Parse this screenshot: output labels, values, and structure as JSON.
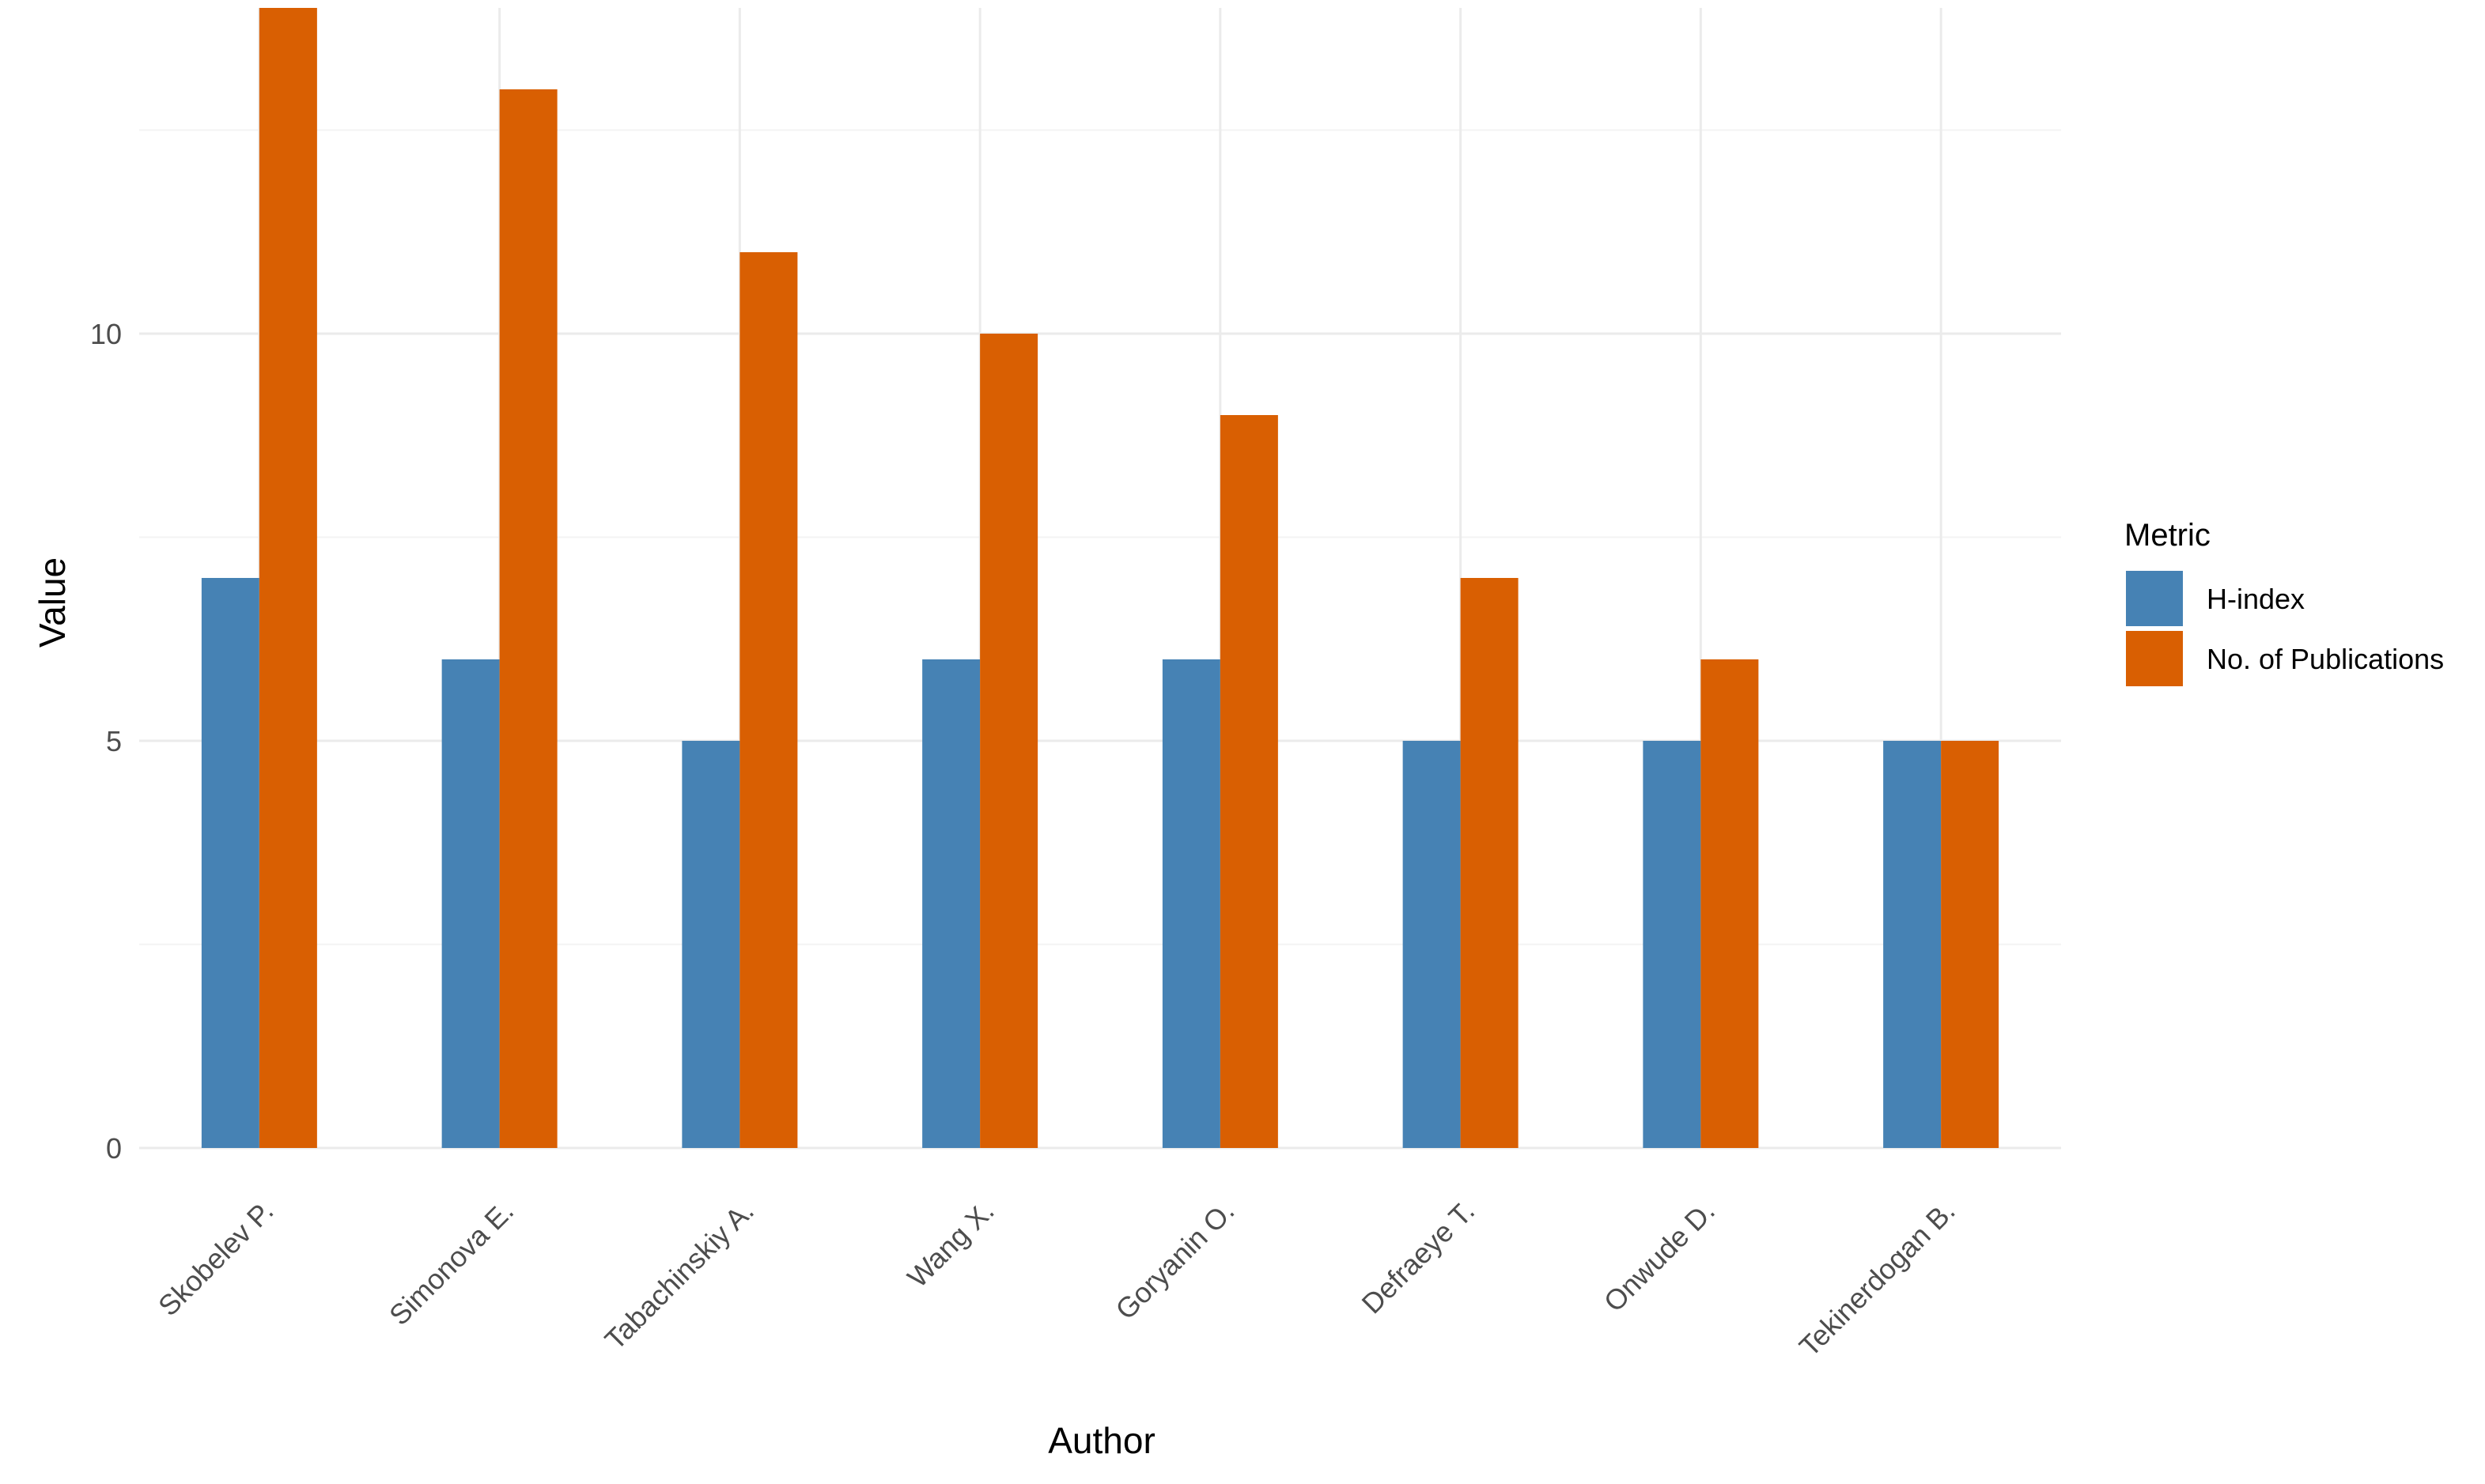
{
  "chart_data": {
    "type": "bar",
    "title": "",
    "xlabel": "Author",
    "ylabel": "Value",
    "ylim": [
      0,
      14
    ],
    "yticks": [
      0,
      5,
      10
    ],
    "grid": true,
    "legend_title": "Metric",
    "legend_position": "right",
    "categories": [
      "Skobelev P.",
      "Simonova E.",
      "Tabachinskiy A.",
      "Wang X.",
      "Goryanin O.",
      "Defraeye T.",
      "Onwude D.",
      "Tekinerdogan B."
    ],
    "series": [
      {
        "name": "H-index",
        "color": "#4682b4",
        "values": [
          7,
          6,
          5,
          6,
          6,
          5,
          5,
          5
        ]
      },
      {
        "name": "No. of Publications",
        "color": "#d95f02",
        "values": [
          14,
          13,
          11,
          10,
          9,
          7,
          6,
          5
        ]
      }
    ]
  }
}
